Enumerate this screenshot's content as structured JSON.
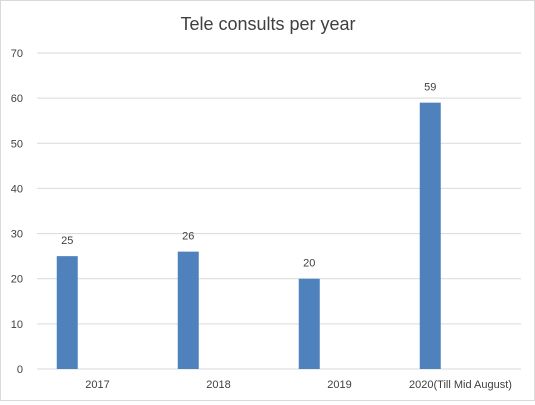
{
  "chart_data": {
    "type": "bar",
    "title": "Tele consults per year",
    "xlabel": "",
    "ylabel": "",
    "categories": [
      "2017",
      "2018",
      "2019",
      "2020(Till Mid August)"
    ],
    "values": [
      25,
      26,
      20,
      59
    ],
    "ylim": [
      0,
      70
    ],
    "yticks": [
      0,
      10,
      20,
      30,
      40,
      50,
      60,
      70
    ],
    "grid": true,
    "legend": "none",
    "bar_color": "#4f81bd",
    "grid_color": "#d9d9d9"
  }
}
